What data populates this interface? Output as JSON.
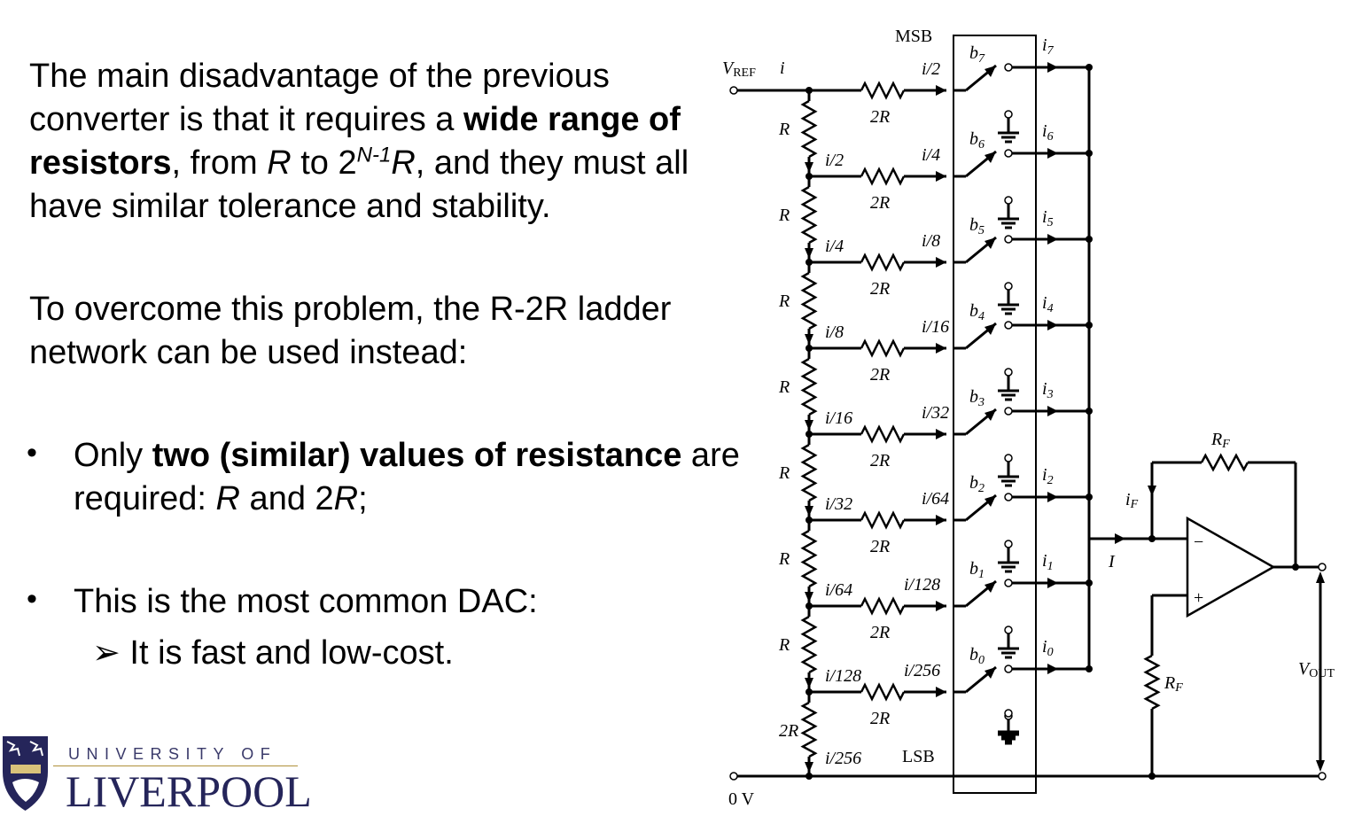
{
  "text": {
    "p1_a": "The main disadvantage of the previous converter is that it requires a ",
    "p1_bold": "wide range of resistors",
    "p1_b": ", from ",
    "p1_r1": "R",
    "p1_c": " to 2",
    "p1_sup": "N-1",
    "p1_r2": "R",
    "p1_d": ", and they must all have similar tolerance and stability.",
    "p2": "To overcome this problem, the R-2R ladder network can be used instead:",
    "bullet_symbol": "•",
    "b1_a": "Only ",
    "b1_bold": "two (similar) values of resistance",
    "b1_b": " are required: ",
    "b1_r": "R",
    "b1_c": " and 2",
    "b1_r2": "R",
    "b1_d": ";",
    "b2": "This is the most common DAC:",
    "sub_symbol": "➢",
    "sub1": "It is fast and low-cost."
  },
  "logo": {
    "top": "UNIVERSITY OF",
    "main": "LIVERPOOL"
  },
  "circuit": {
    "msb": "MSB",
    "lsb": "LSB",
    "vref": "V",
    "vref_sub": "REF",
    "i": "i",
    "zero_v": "0 V",
    "R": "R",
    "twoR": "2R",
    "branch_currents": [
      "i/2",
      "i/4",
      "i/8",
      "i/16",
      "i/32",
      "i/64",
      "i/128",
      "i/256"
    ],
    "ladder_currents": [
      "i/2",
      "i/4",
      "i/8",
      "i/16",
      "i/32",
      "i/64",
      "i/128",
      "i/256"
    ],
    "bits": [
      "b7",
      "b6",
      "b5",
      "b4",
      "b3",
      "b2",
      "b1",
      "b0"
    ],
    "out_currents": [
      "i7",
      "i6",
      "i5",
      "i4",
      "i3",
      "i2",
      "i1",
      "i0"
    ],
    "I": "I",
    "iF": "i",
    "iF_sub": "F",
    "RF": "R",
    "RF_sub": "F",
    "vout": "V",
    "vout_sub": "OUT",
    "minus": "−",
    "plus": "+"
  }
}
